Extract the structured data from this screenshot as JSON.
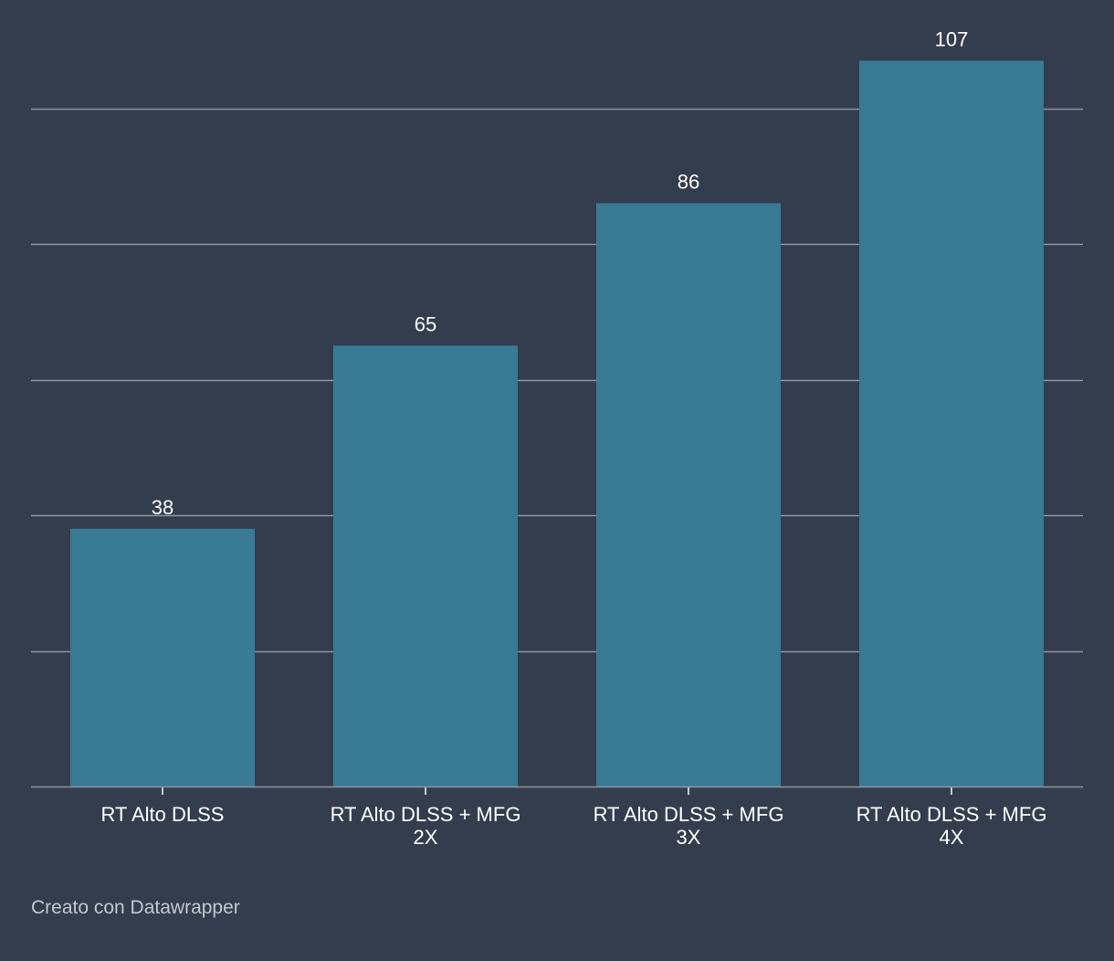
{
  "chart_data": {
    "type": "bar",
    "categories": [
      [
        "RT Alto DLSS"
      ],
      [
        "RT Alto DLSS + MFG",
        "2X"
      ],
      [
        "RT Alto DLSS + MFG",
        "3X"
      ],
      [
        "RT Alto DLSS + MFG",
        "4X"
      ]
    ],
    "values": [
      38,
      65,
      86,
      107
    ],
    "title": "",
    "xlabel": "",
    "ylabel": "",
    "ylim": [
      0,
      115
    ],
    "gridlines": [
      20,
      40,
      60,
      80,
      100
    ],
    "grid": true,
    "y_tick_labels": false,
    "bar_color": "#397a95",
    "background_color": "#333d4d",
    "grid_color": "#8f959e",
    "label_color": "#ffffff"
  },
  "footer": {
    "credit": "Creato con Datawrapper"
  }
}
